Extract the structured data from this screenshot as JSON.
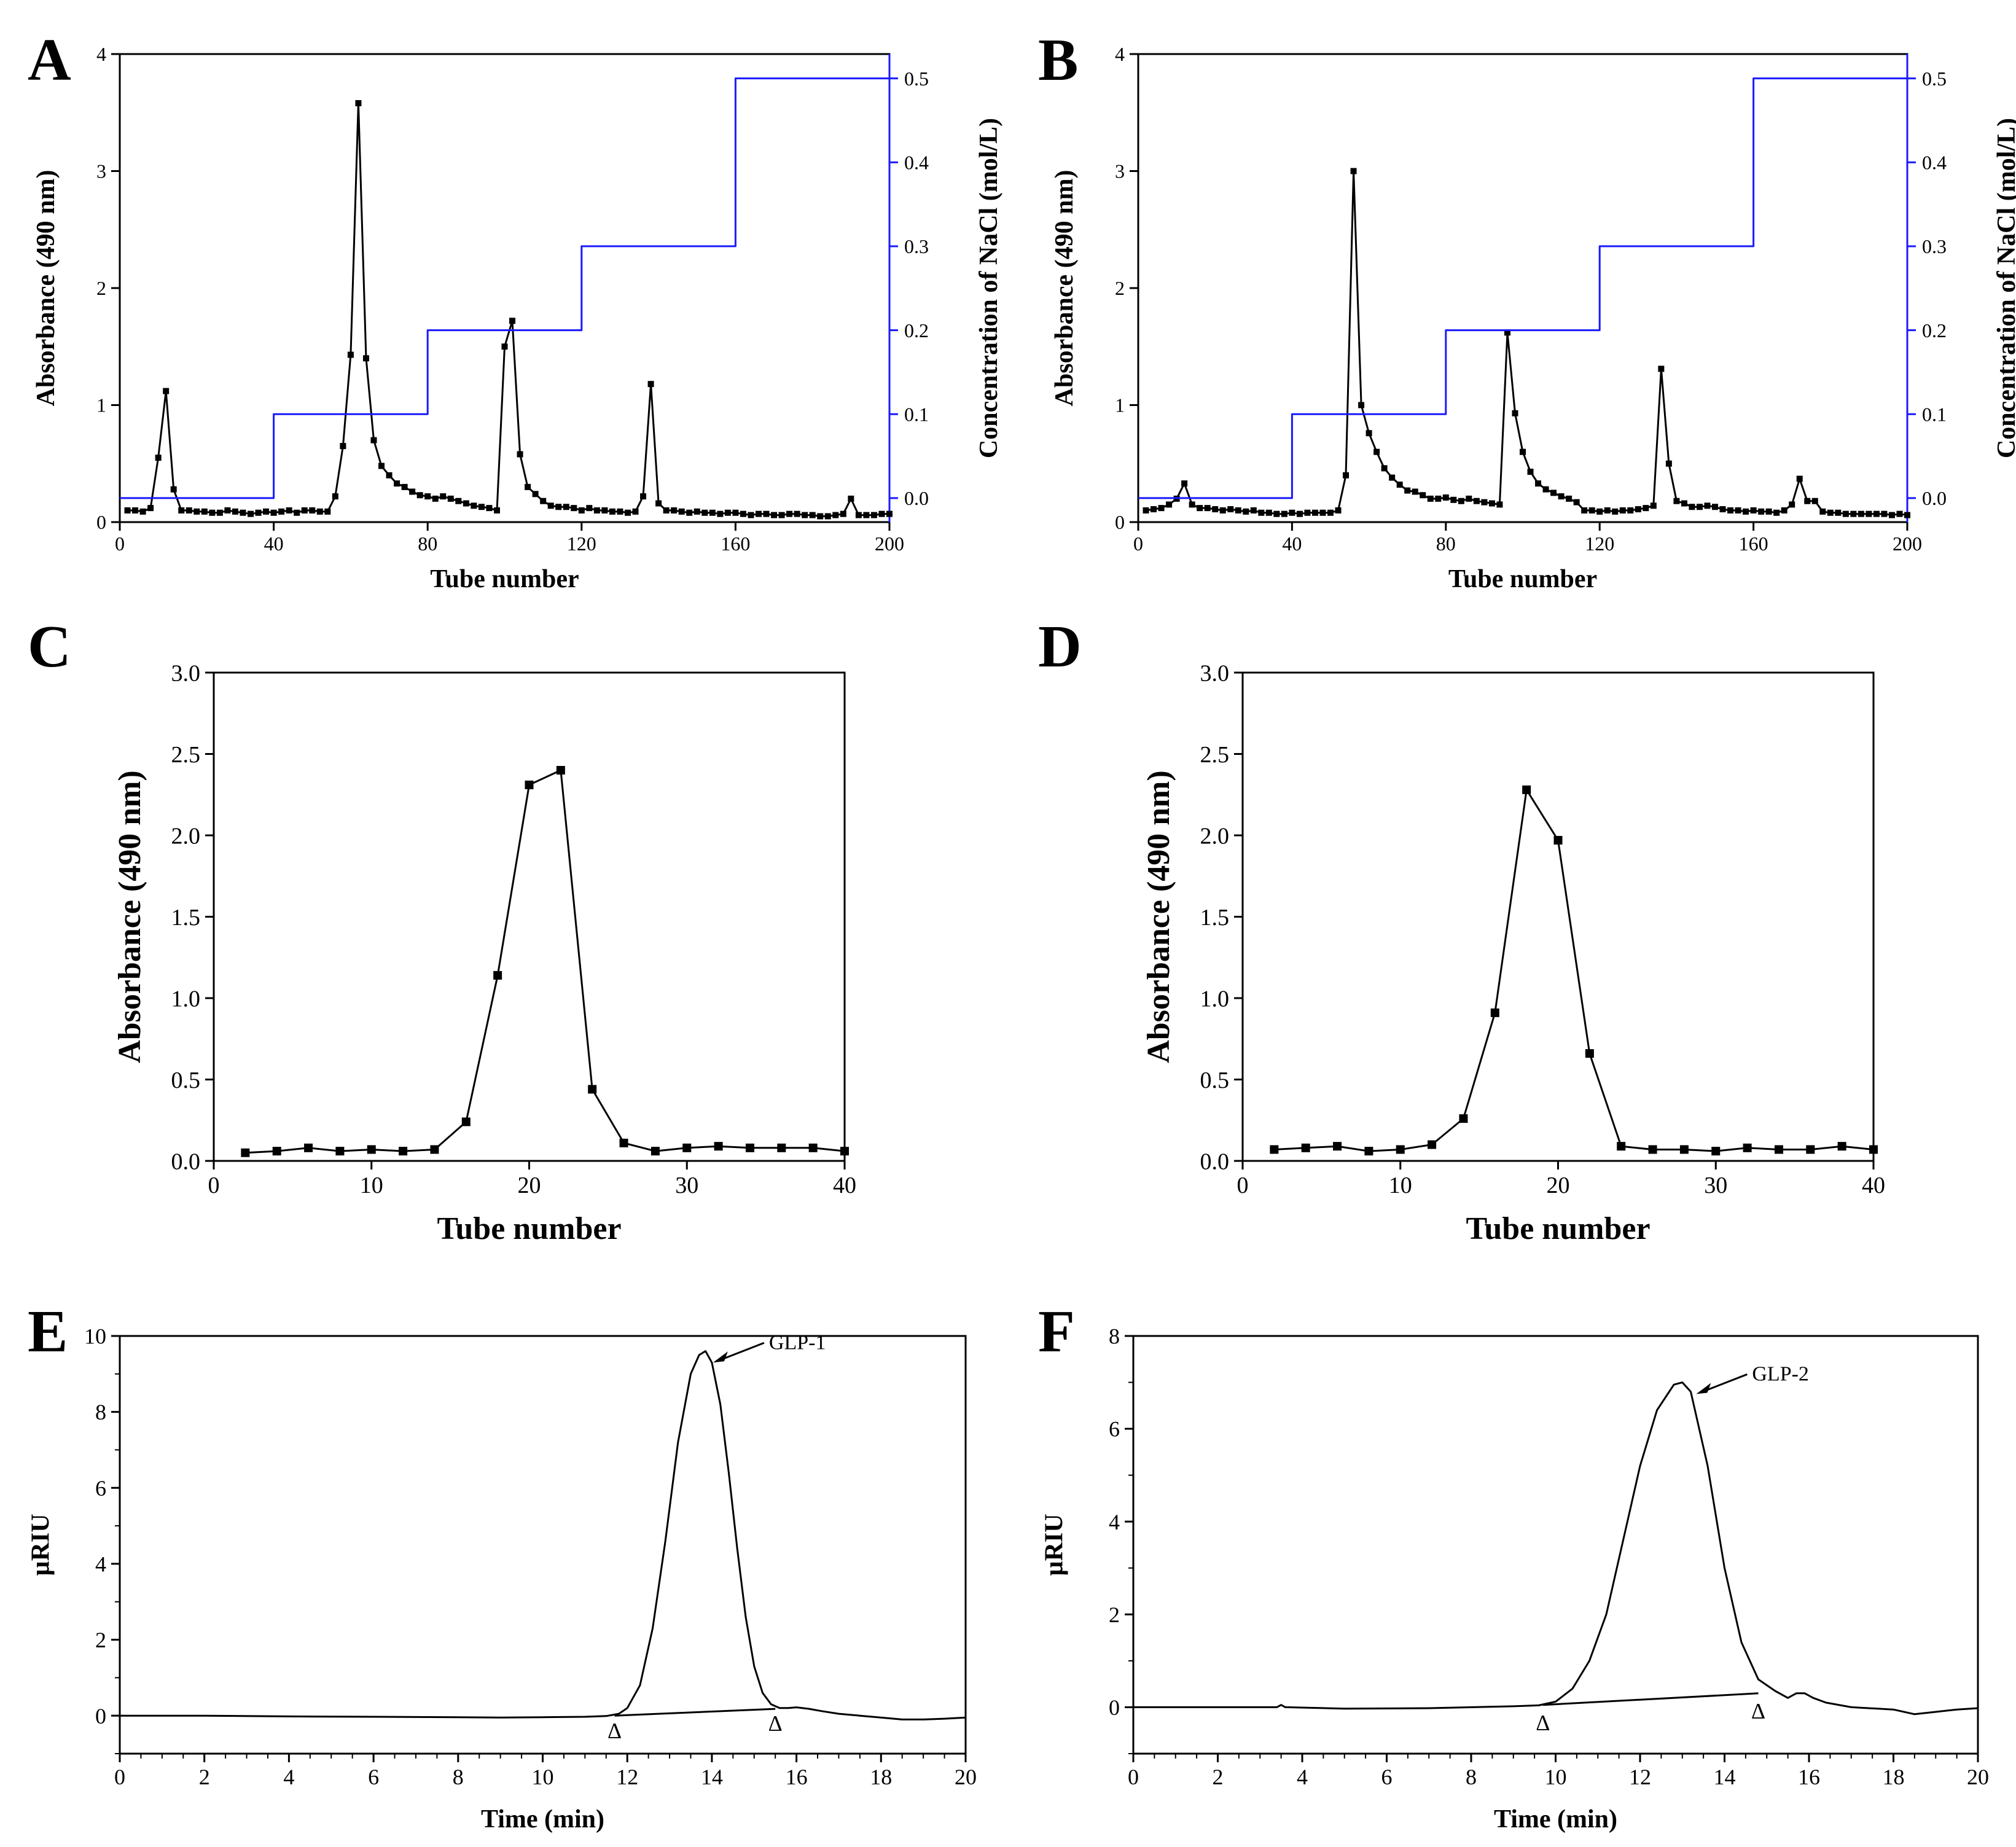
{
  "colors": {
    "ink": "#000000",
    "salt": "#1a1aff"
  },
  "chart_data": [
    {
      "panel": "A",
      "type": "line",
      "markers": true,
      "xlabel": "Tube number",
      "ylabel": "Absorbance (490 nm)",
      "y2label": "Concentration of NaCl (mol/L)",
      "xlim": [
        0,
        200
      ],
      "ylim": [
        0,
        4
      ],
      "y2lim": [
        -0.0286,
        0.529
      ],
      "xticks": [
        0,
        40,
        80,
        120,
        160,
        200
      ],
      "xtick_labels": [
        "0",
        "40",
        "80",
        "120",
        "160",
        "200"
      ],
      "yticks": [
        0,
        1,
        2,
        3,
        4
      ],
      "ytick_labels": [
        "0",
        "1",
        "2",
        "3",
        "4"
      ],
      "y2ticks": [
        0,
        0.1,
        0.2,
        0.3,
        0.4,
        0.5
      ],
      "y2tick_labels": [
        "0.0",
        "0.1",
        "0.2",
        "0.3",
        "0.4",
        "0.5"
      ],
      "series": [
        {
          "name": "Absorbance",
          "x": [
            2,
            4,
            6,
            8,
            10,
            12,
            14,
            16,
            18,
            20,
            22,
            24,
            26,
            28,
            30,
            32,
            34,
            36,
            38,
            40,
            42,
            44,
            46,
            48,
            50,
            52,
            54,
            56,
            58,
            60,
            62,
            64,
            66,
            68,
            70,
            72,
            74,
            76,
            78,
            80,
            82,
            84,
            86,
            88,
            90,
            92,
            94,
            96,
            98,
            100,
            102,
            104,
            106,
            108,
            110,
            112,
            114,
            116,
            118,
            120,
            122,
            124,
            126,
            128,
            130,
            132,
            134,
            136,
            138,
            140,
            142,
            144,
            146,
            148,
            150,
            152,
            154,
            156,
            158,
            160,
            162,
            164,
            166,
            168,
            170,
            172,
            174,
            176,
            178,
            180,
            182,
            184,
            186,
            188,
            190,
            192,
            194,
            196,
            198,
            200
          ],
          "y": [
            0.1,
            0.1,
            0.09,
            0.12,
            0.55,
            1.12,
            0.28,
            0.1,
            0.1,
            0.09,
            0.09,
            0.08,
            0.08,
            0.1,
            0.09,
            0.08,
            0.07,
            0.08,
            0.09,
            0.08,
            0.09,
            0.1,
            0.08,
            0.1,
            0.1,
            0.09,
            0.09,
            0.22,
            0.65,
            1.43,
            3.58,
            1.4,
            0.7,
            0.48,
            0.4,
            0.33,
            0.3,
            0.26,
            0.23,
            0.22,
            0.2,
            0.22,
            0.2,
            0.18,
            0.16,
            0.14,
            0.13,
            0.12,
            0.1,
            1.5,
            1.72,
            0.58,
            0.3,
            0.24,
            0.18,
            0.14,
            0.13,
            0.13,
            0.12,
            0.1,
            0.12,
            0.1,
            0.1,
            0.09,
            0.09,
            0.08,
            0.09,
            0.22,
            1.18,
            0.16,
            0.1,
            0.1,
            0.09,
            0.08,
            0.09,
            0.08,
            0.08,
            0.07,
            0.08,
            0.08,
            0.07,
            0.06,
            0.07,
            0.07,
            0.06,
            0.06,
            0.07,
            0.07,
            0.06,
            0.06,
            0.05,
            0.05,
            0.06,
            0.07,
            0.2,
            0.06,
            0.06,
            0.06,
            0.07,
            0.07
          ]
        },
        {
          "name": "NaCl step gradient",
          "axis": "y2",
          "x": [
            0,
            40,
            40,
            80,
            80,
            120,
            120,
            160,
            160,
            200
          ],
          "y": [
            0,
            0,
            0.1,
            0.1,
            0.2,
            0.2,
            0.3,
            0.3,
            0.5,
            0.5
          ]
        }
      ]
    },
    {
      "panel": "B",
      "type": "line",
      "markers": true,
      "xlabel": "Tube number",
      "ylabel": "Absorbance (490 nm)",
      "y2label": "Concentration of NaCl (mol/L)",
      "xlim": [
        0,
        200
      ],
      "ylim": [
        0,
        4
      ],
      "y2lim": [
        -0.0286,
        0.529
      ],
      "xticks": [
        0,
        40,
        80,
        120,
        160,
        200
      ],
      "xtick_labels": [
        "0",
        "40",
        "80",
        "120",
        "160",
        "200"
      ],
      "yticks": [
        0,
        1,
        2,
        3,
        4
      ],
      "ytick_labels": [
        "0",
        "1",
        "2",
        "3",
        "4"
      ],
      "y2ticks": [
        0,
        0.1,
        0.2,
        0.3,
        0.4,
        0.5
      ],
      "y2tick_labels": [
        "0.0",
        "0.1",
        "0.2",
        "0.3",
        "0.4",
        "0.5"
      ],
      "series": [
        {
          "name": "Absorbance",
          "x": [
            2,
            4,
            6,
            8,
            10,
            12,
            14,
            16,
            18,
            20,
            22,
            24,
            26,
            28,
            30,
            32,
            34,
            36,
            38,
            40,
            42,
            44,
            46,
            48,
            50,
            52,
            54,
            56,
            58,
            60,
            62,
            64,
            66,
            68,
            70,
            72,
            74,
            76,
            78,
            80,
            82,
            84,
            86,
            88,
            90,
            92,
            94,
            96,
            98,
            100,
            102,
            104,
            106,
            108,
            110,
            112,
            114,
            116,
            118,
            120,
            122,
            124,
            126,
            128,
            130,
            132,
            134,
            136,
            138,
            140,
            142,
            144,
            146,
            148,
            150,
            152,
            154,
            156,
            158,
            160,
            162,
            164,
            166,
            168,
            170,
            172,
            174,
            176,
            178,
            180,
            182,
            184,
            186,
            188,
            190,
            192,
            194,
            196,
            198,
            200
          ],
          "y": [
            0.1,
            0.11,
            0.12,
            0.15,
            0.2,
            0.33,
            0.15,
            0.12,
            0.12,
            0.11,
            0.1,
            0.11,
            0.1,
            0.09,
            0.1,
            0.08,
            0.08,
            0.07,
            0.07,
            0.08,
            0.07,
            0.08,
            0.08,
            0.08,
            0.08,
            0.1,
            0.4,
            3.0,
            1.0,
            0.76,
            0.6,
            0.46,
            0.38,
            0.32,
            0.27,
            0.26,
            0.23,
            0.2,
            0.2,
            0.21,
            0.19,
            0.18,
            0.2,
            0.18,
            0.17,
            0.16,
            0.15,
            1.62,
            0.93,
            0.6,
            0.43,
            0.33,
            0.28,
            0.25,
            0.22,
            0.2,
            0.17,
            0.1,
            0.1,
            0.09,
            0.1,
            0.09,
            0.1,
            0.1,
            0.11,
            0.12,
            0.14,
            1.31,
            0.5,
            0.18,
            0.16,
            0.13,
            0.13,
            0.14,
            0.13,
            0.11,
            0.1,
            0.1,
            0.09,
            0.1,
            0.09,
            0.09,
            0.08,
            0.1,
            0.15,
            0.37,
            0.18,
            0.18,
            0.09,
            0.08,
            0.08,
            0.07,
            0.07,
            0.07,
            0.07,
            0.07,
            0.07,
            0.06,
            0.07,
            0.06
          ]
        },
        {
          "name": "NaCl step gradient",
          "axis": "y2",
          "x": [
            0,
            40,
            40,
            80,
            80,
            120,
            120,
            160,
            160,
            200
          ],
          "y": [
            0,
            0,
            0.1,
            0.1,
            0.2,
            0.2,
            0.3,
            0.3,
            0.5,
            0.5
          ]
        }
      ]
    },
    {
      "panel": "C",
      "type": "line",
      "markers": true,
      "xlabel": "Tube number",
      "ylabel": "Absorbance (490 nm)",
      "xlim": [
        0,
        40
      ],
      "ylim": [
        0,
        3.0
      ],
      "xticks": [
        0,
        10,
        20,
        30,
        40
      ],
      "xtick_labels": [
        "0",
        "10",
        "20",
        "30",
        "40"
      ],
      "yticks": [
        0,
        0.5,
        1.0,
        1.5,
        2.0,
        2.5,
        3.0
      ],
      "ytick_labels": [
        "0.0",
        "0.5",
        "1.0",
        "1.5",
        "2.0",
        "2.5",
        "3.0"
      ],
      "series": [
        {
          "name": "Absorbance",
          "x": [
            2,
            4,
            6,
            8,
            10,
            12,
            14,
            16,
            18,
            20,
            22,
            24,
            26,
            28,
            30,
            32,
            34,
            36,
            38,
            40
          ],
          "y": [
            0.05,
            0.06,
            0.08,
            0.06,
            0.07,
            0.06,
            0.07,
            0.24,
            1.14,
            2.31,
            2.4,
            0.44,
            0.11,
            0.06,
            0.08,
            0.09,
            0.08,
            0.08,
            0.08,
            0.06
          ]
        }
      ]
    },
    {
      "panel": "D",
      "type": "line",
      "markers": true,
      "xlabel": "Tube number",
      "ylabel": "Absorbance (490 nm)",
      "xlim": [
        0,
        40
      ],
      "ylim": [
        0,
        3.0
      ],
      "xticks": [
        0,
        10,
        20,
        30,
        40
      ],
      "xtick_labels": [
        "0",
        "10",
        "20",
        "30",
        "40"
      ],
      "yticks": [
        0,
        0.5,
        1.0,
        1.5,
        2.0,
        2.5,
        3.0
      ],
      "ytick_labels": [
        "0.0",
        "0.5",
        "1.0",
        "1.5",
        "2.0",
        "2.5",
        "3.0"
      ],
      "series": [
        {
          "name": "Absorbance",
          "x": [
            2,
            4,
            6,
            8,
            10,
            12,
            14,
            16,
            18,
            20,
            22,
            24,
            26,
            28,
            30,
            32,
            34,
            36,
            38,
            40
          ],
          "y": [
            0.07,
            0.08,
            0.09,
            0.06,
            0.07,
            0.1,
            0.26,
            0.91,
            2.28,
            1.97,
            0.66,
            0.09,
            0.07,
            0.07,
            0.06,
            0.08,
            0.07,
            0.07,
            0.09,
            0.07
          ]
        }
      ]
    },
    {
      "panel": "E",
      "type": "line",
      "markers": false,
      "xlabel": "Time (min)",
      "ylabel": "µRIU",
      "xlim": [
        0,
        20
      ],
      "ylim": [
        -1,
        10
      ],
      "xticks": [
        0,
        2,
        4,
        6,
        8,
        10,
        12,
        14,
        16,
        18,
        20
      ],
      "xtick_labels": [
        "0",
        "2",
        "4",
        "6",
        "8",
        "10",
        "12",
        "14",
        "16",
        "18",
        "20"
      ],
      "yticks": [
        0,
        2,
        4,
        6,
        8,
        10
      ],
      "ytick_labels": [
        "0",
        "2",
        "4",
        "6",
        "8",
        "10"
      ],
      "series": [
        {
          "name": "Chromatogram",
          "x": [
            0,
            2,
            4,
            6,
            8,
            9,
            10,
            11,
            11.5,
            11.8,
            12,
            12.3,
            12.6,
            12.9,
            13.2,
            13.5,
            13.7,
            13.85,
            14,
            14.2,
            14.4,
            14.6,
            14.8,
            15,
            15.2,
            15.4,
            15.6,
            15.8,
            16,
            16.3,
            16.6,
            17,
            17.5,
            18,
            18.5,
            19,
            19.5,
            20
          ],
          "y": [
            0,
            0,
            -0.02,
            -0.03,
            -0.04,
            -0.05,
            -0.04,
            -0.03,
            -0.01,
            0.05,
            0.2,
            0.8,
            2.3,
            4.6,
            7.2,
            9.0,
            9.5,
            9.6,
            9.3,
            8.2,
            6.4,
            4.4,
            2.6,
            1.3,
            0.6,
            0.3,
            0.2,
            0.2,
            0.22,
            0.18,
            0.12,
            0.05,
            0.0,
            -0.05,
            -0.1,
            -0.1,
            -0.08,
            -0.05
          ]
        },
        {
          "name": "Baseline",
          "x": [
            11.7,
            15.5
          ],
          "y": [
            0.0,
            0.18
          ]
        }
      ],
      "peak_markers": [
        {
          "x": 11.7,
          "y": -0.3,
          "label": "Δ"
        },
        {
          "x": 15.5,
          "y": -0.1,
          "label": "Δ"
        }
      ],
      "annotation": {
        "text": "GLP-1",
        "points_to": [
          14.0,
          9.3
        ]
      }
    },
    {
      "panel": "F",
      "type": "line",
      "markers": false,
      "xlabel": "Time (min)",
      "ylabel": "µRIU",
      "xlim": [
        0,
        20
      ],
      "ylim": [
        -1,
        8
      ],
      "xticks": [
        0,
        2,
        4,
        6,
        8,
        10,
        12,
        14,
        16,
        18,
        20
      ],
      "xtick_labels": [
        "0",
        "2",
        "4",
        "6",
        "8",
        "10",
        "12",
        "14",
        "16",
        "18",
        "20"
      ],
      "yticks": [
        0,
        2,
        4,
        6,
        8
      ],
      "ytick_labels": [
        "0",
        "2",
        "4",
        "6",
        "8"
      ],
      "series": [
        {
          "name": "Chromatogram",
          "x": [
            0,
            2,
            3.4,
            3.5,
            3.6,
            5,
            7,
            9,
            9.6,
            10,
            10.4,
            10.8,
            11.2,
            11.6,
            12,
            12.4,
            12.8,
            13,
            13.2,
            13.6,
            14,
            14.4,
            14.8,
            15.2,
            15.5,
            15.7,
            15.9,
            16.1,
            16.4,
            17,
            18,
            18.5,
            19,
            19.5,
            20
          ],
          "y": [
            0,
            0,
            0,
            0.05,
            0,
            -0.03,
            -0.02,
            0.02,
            0.04,
            0.12,
            0.4,
            1.0,
            2.0,
            3.6,
            5.2,
            6.4,
            6.95,
            7.0,
            6.8,
            5.2,
            3.0,
            1.4,
            0.6,
            0.35,
            0.2,
            0.3,
            0.3,
            0.2,
            0.1,
            0.0,
            -0.05,
            -0.15,
            -0.1,
            -0.05,
            -0.02
          ]
        },
        {
          "name": "Baseline",
          "x": [
            9.7,
            14.8
          ],
          "y": [
            0.05,
            0.3
          ]
        }
      ],
      "peak_markers": [
        {
          "x": 9.7,
          "y": -0.25,
          "label": "Δ"
        },
        {
          "x": 14.8,
          "y": 0.0,
          "label": "Δ"
        }
      ],
      "annotation": {
        "text": "GLP-2",
        "points_to": [
          13.3,
          6.75
        ]
      }
    }
  ]
}
